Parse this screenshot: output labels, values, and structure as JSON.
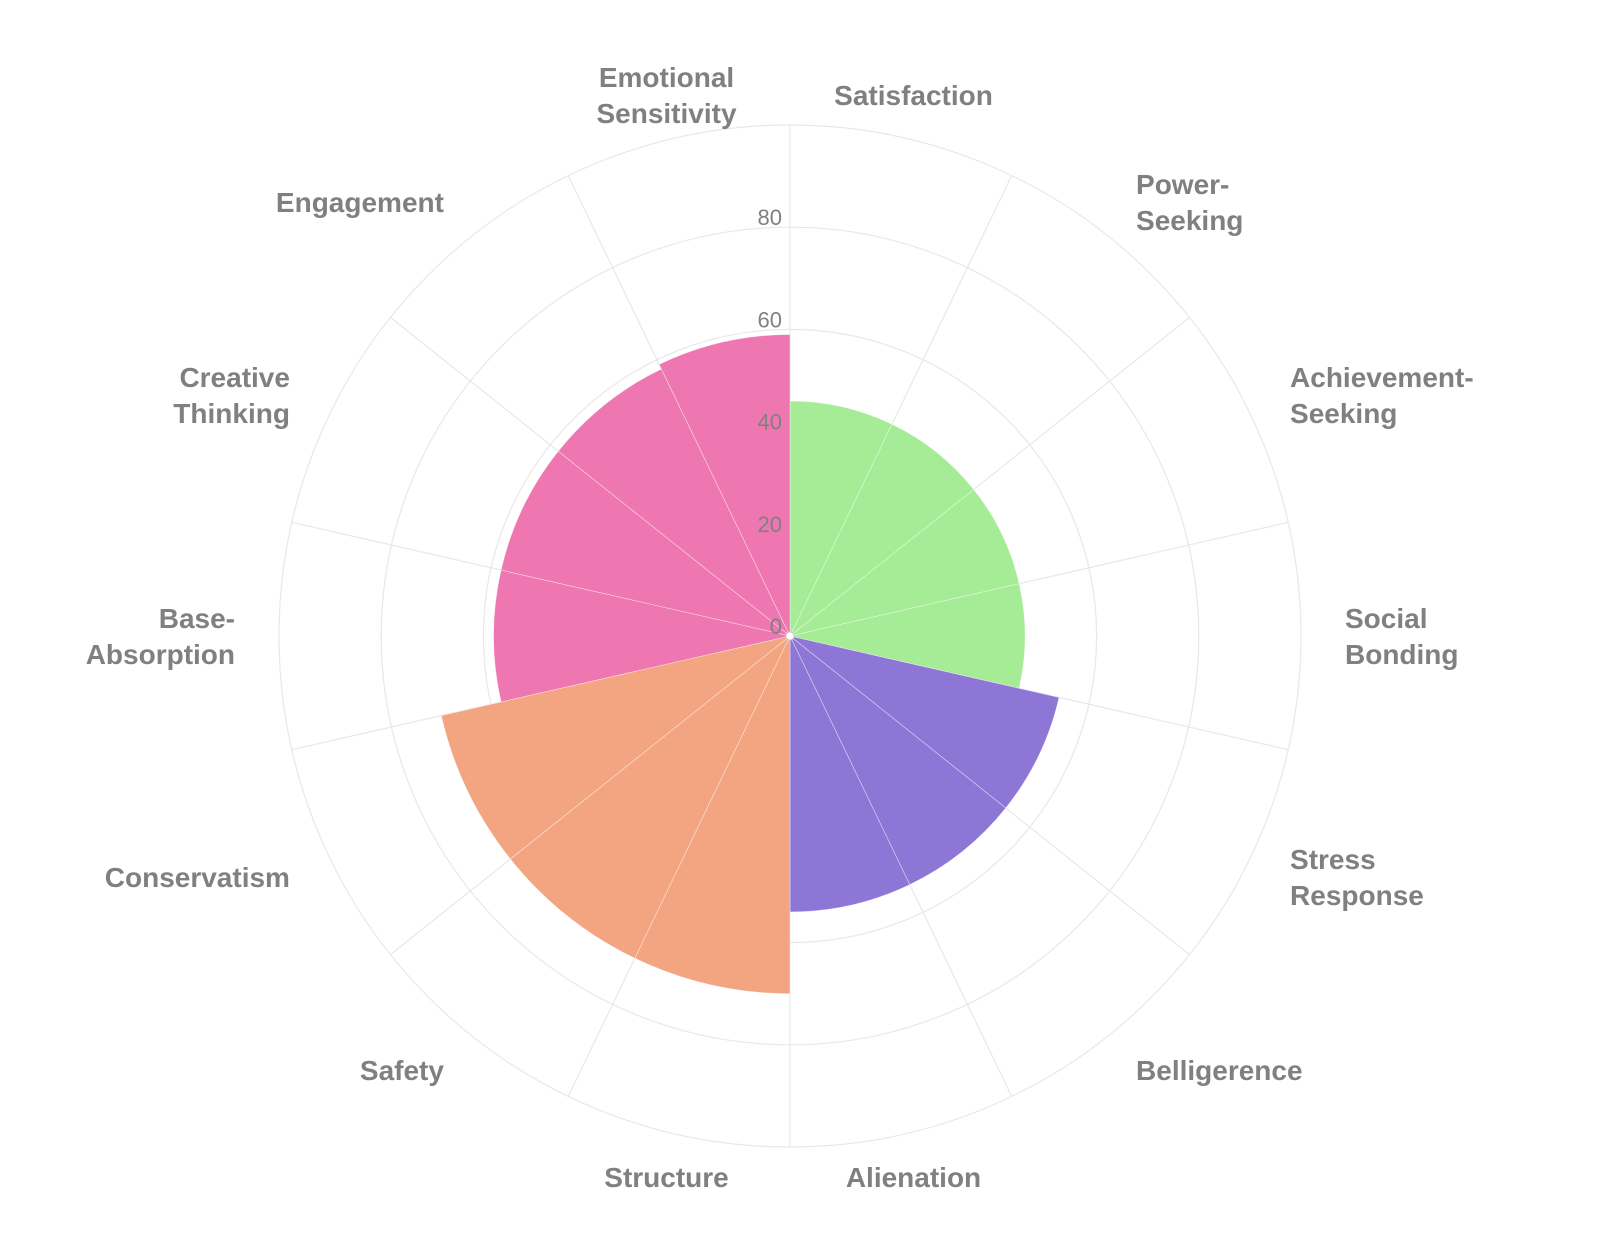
{
  "chart_data": {
    "type": "polar-bar",
    "title": "",
    "rlim": [
      0,
      100
    ],
    "rticks": [
      0,
      20,
      40,
      60,
      80
    ],
    "grid": true,
    "legend": "none",
    "categories": [
      "Satisfaction",
      "Power-\nSeeking",
      "Achievement-\nSeeking",
      "Social\nBonding",
      "Stress\nResponse",
      "Belligerence",
      "Alienation",
      "Structure",
      "Safety",
      "Conservatism",
      "Base-\nAbsorption",
      "Creative\nThinking",
      "Engagement",
      "Emotional\nSensitivity"
    ],
    "values": [
      46,
      46,
      46,
      46,
      54,
      54,
      54,
      70,
      70,
      70,
      58,
      58,
      58,
      59
    ],
    "colors": [
      "#a6eb96",
      "#a6eb96",
      "#a6eb96",
      "#a6eb96",
      "#8e76d6",
      "#8e76d6",
      "#8e76d6",
      "#f2a580",
      "#f2a580",
      "#f2a580",
      "#ee77b2",
      "#ee77b2",
      "#ee77b2",
      "#ee77b2"
    ],
    "grid_color": "#e8e8e8"
  }
}
